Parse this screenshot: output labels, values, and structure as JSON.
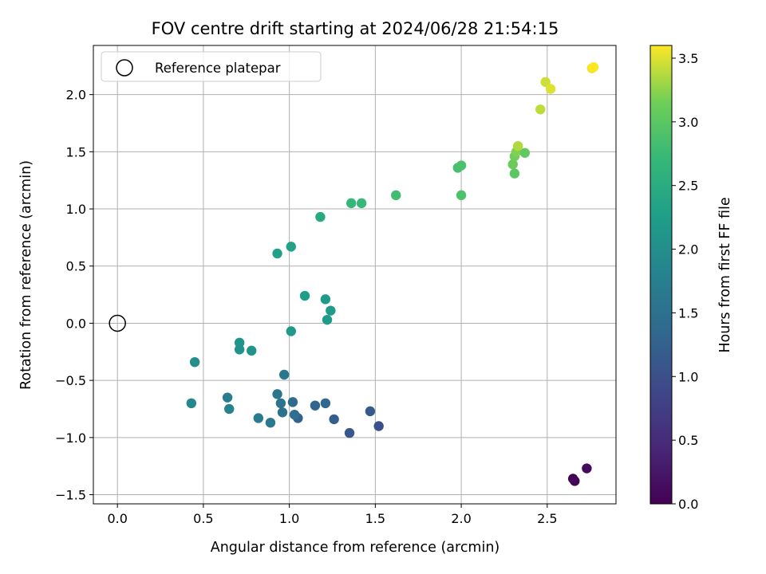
{
  "chart_data": {
    "type": "scatter",
    "title": "FOV centre drift starting at 2024/06/28 21:54:15",
    "xlabel": "Angular distance from reference (arcmin)",
    "ylabel": "Rotation from reference (arcmin)",
    "colorbar_label": "Hours from first FF file",
    "xlim": [
      -0.14,
      2.9
    ],
    "ylim": [
      -1.58,
      2.43
    ],
    "clim": [
      0.0,
      3.6
    ],
    "colormap": "viridis",
    "grid": true,
    "legend_position": "upper-left",
    "x_ticks": [
      {
        "value": 0.0,
        "label": "0.0"
      },
      {
        "value": 0.5,
        "label": "0.5"
      },
      {
        "value": 1.0,
        "label": "1.0"
      },
      {
        "value": 1.5,
        "label": "1.5"
      },
      {
        "value": 2.0,
        "label": "2.0"
      },
      {
        "value": 2.5,
        "label": "2.5"
      }
    ],
    "y_ticks": [
      {
        "value": -1.5,
        "label": "−1.5"
      },
      {
        "value": -1.0,
        "label": "−1.0"
      },
      {
        "value": -0.5,
        "label": "−0.5"
      },
      {
        "value": 0.0,
        "label": "0.0"
      },
      {
        "value": 0.5,
        "label": "0.5"
      },
      {
        "value": 1.0,
        "label": "1.0"
      },
      {
        "value": 1.5,
        "label": "1.5"
      },
      {
        "value": 2.0,
        "label": "2.0"
      }
    ],
    "colorbar_ticks": [
      {
        "value": 0.0,
        "label": "0.0"
      },
      {
        "value": 0.5,
        "label": "0.5"
      },
      {
        "value": 1.0,
        "label": "1.0"
      },
      {
        "value": 1.5,
        "label": "1.5"
      },
      {
        "value": 2.0,
        "label": "2.0"
      },
      {
        "value": 2.5,
        "label": "2.5"
      },
      {
        "value": 3.0,
        "label": "3.0"
      },
      {
        "value": 3.5,
        "label": "3.5"
      }
    ],
    "reference": {
      "x": 0.0,
      "y": 0.0,
      "label": "Reference platepar"
    },
    "points": [
      {
        "x": 2.65,
        "y": -1.36,
        "h": 0.02
      },
      {
        "x": 2.66,
        "y": -1.38,
        "h": 0.05
      },
      {
        "x": 2.73,
        "y": -1.27,
        "h": 0.1
      },
      {
        "x": 1.52,
        "y": -0.9,
        "h": 1.0
      },
      {
        "x": 1.35,
        "y": -0.96,
        "h": 1.1
      },
      {
        "x": 1.47,
        "y": -0.77,
        "h": 1.15
      },
      {
        "x": 1.26,
        "y": -0.84,
        "h": 1.2
      },
      {
        "x": 1.05,
        "y": -0.83,
        "h": 1.25
      },
      {
        "x": 1.15,
        "y": -0.72,
        "h": 1.3
      },
      {
        "x": 1.21,
        "y": -0.7,
        "h": 1.35
      },
      {
        "x": 1.02,
        "y": -0.69,
        "h": 1.4
      },
      {
        "x": 1.03,
        "y": -0.8,
        "h": 1.45
      },
      {
        "x": 0.96,
        "y": -0.78,
        "h": 1.5
      },
      {
        "x": 0.95,
        "y": -0.7,
        "h": 1.55
      },
      {
        "x": 0.93,
        "y": -0.62,
        "h": 1.6
      },
      {
        "x": 0.97,
        "y": -0.45,
        "h": 1.62
      },
      {
        "x": 0.89,
        "y": -0.87,
        "h": 1.65
      },
      {
        "x": 0.82,
        "y": -0.83,
        "h": 1.7
      },
      {
        "x": 0.64,
        "y": -0.65,
        "h": 1.75
      },
      {
        "x": 0.65,
        "y": -0.75,
        "h": 1.8
      },
      {
        "x": 0.43,
        "y": -0.7,
        "h": 1.9
      },
      {
        "x": 0.45,
        "y": -0.34,
        "h": 2.0
      },
      {
        "x": 0.71,
        "y": -0.23,
        "h": 2.05
      },
      {
        "x": 0.71,
        "y": -0.17,
        "h": 2.1
      },
      {
        "x": 0.78,
        "y": -0.24,
        "h": 2.1
      },
      {
        "x": 1.01,
        "y": -0.07,
        "h": 2.15
      },
      {
        "x": 1.22,
        "y": 0.03,
        "h": 2.2
      },
      {
        "x": 1.24,
        "y": 0.11,
        "h": 2.2
      },
      {
        "x": 1.21,
        "y": 0.21,
        "h": 2.22
      },
      {
        "x": 1.09,
        "y": 0.24,
        "h": 2.25
      },
      {
        "x": 0.93,
        "y": 0.61,
        "h": 2.3
      },
      {
        "x": 1.01,
        "y": 0.67,
        "h": 2.32
      },
      {
        "x": 1.18,
        "y": 0.93,
        "h": 2.45
      },
      {
        "x": 1.36,
        "y": 1.05,
        "h": 2.7
      },
      {
        "x": 1.42,
        "y": 1.05,
        "h": 2.72
      },
      {
        "x": 1.62,
        "y": 1.12,
        "h": 2.8
      },
      {
        "x": 2.0,
        "y": 1.12,
        "h": 2.9
      },
      {
        "x": 1.98,
        "y": 1.36,
        "h": 2.85
      },
      {
        "x": 2.0,
        "y": 1.38,
        "h": 2.88
      },
      {
        "x": 2.31,
        "y": 1.31,
        "h": 3.0
      },
      {
        "x": 2.3,
        "y": 1.39,
        "h": 3.1
      },
      {
        "x": 2.31,
        "y": 1.46,
        "h": 3.15
      },
      {
        "x": 2.32,
        "y": 1.5,
        "h": 3.2
      },
      {
        "x": 2.37,
        "y": 1.49,
        "h": 3.05
      },
      {
        "x": 2.33,
        "y": 1.55,
        "h": 3.35
      },
      {
        "x": 2.46,
        "y": 1.87,
        "h": 3.4
      },
      {
        "x": 2.49,
        "y": 2.11,
        "h": 3.45
      },
      {
        "x": 2.52,
        "y": 2.05,
        "h": 3.5
      },
      {
        "x": 2.76,
        "y": 2.23,
        "h": 3.55
      },
      {
        "x": 2.77,
        "y": 2.24,
        "h": 3.6
      }
    ]
  }
}
